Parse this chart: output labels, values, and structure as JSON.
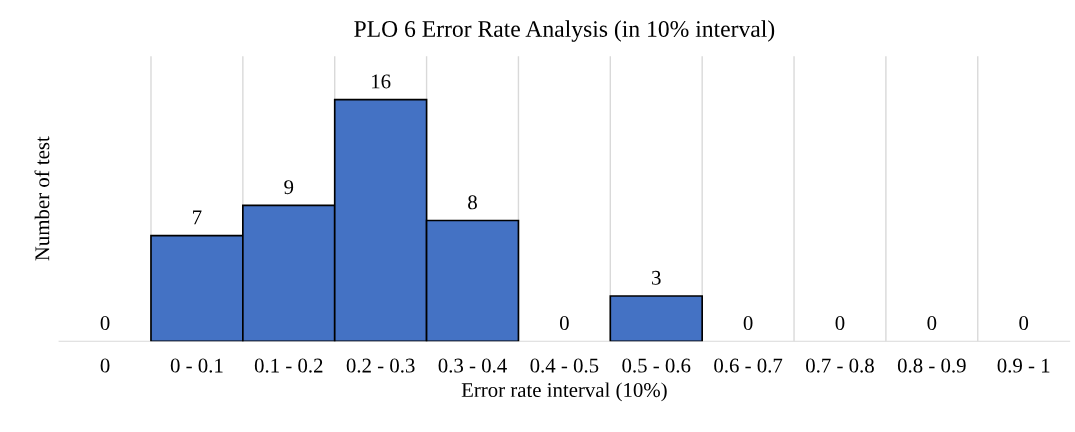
{
  "chart_data": {
    "type": "bar",
    "title": "PLO 6 Error Rate Analysis (in 10% interval)",
    "xlabel": "Error rate interval (10%)",
    "ylabel": "Number of test",
    "categories": [
      "0",
      "0 - 0.1",
      "0.1 - 0.2",
      "0.2 - 0.3",
      "0.3 - 0.4",
      "0.4 - 0.5",
      "0.5 - 0.6",
      "0.6 - 0.7",
      "0.7 - 0.8",
      "0.8 - 0.9",
      "0.9 - 1"
    ],
    "values": [
      0,
      7,
      9,
      16,
      8,
      0,
      3,
      0,
      0,
      0,
      0
    ],
    "color": "#4472c4",
    "data_labels": true,
    "grid": "x",
    "tick_labels": "x"
  }
}
